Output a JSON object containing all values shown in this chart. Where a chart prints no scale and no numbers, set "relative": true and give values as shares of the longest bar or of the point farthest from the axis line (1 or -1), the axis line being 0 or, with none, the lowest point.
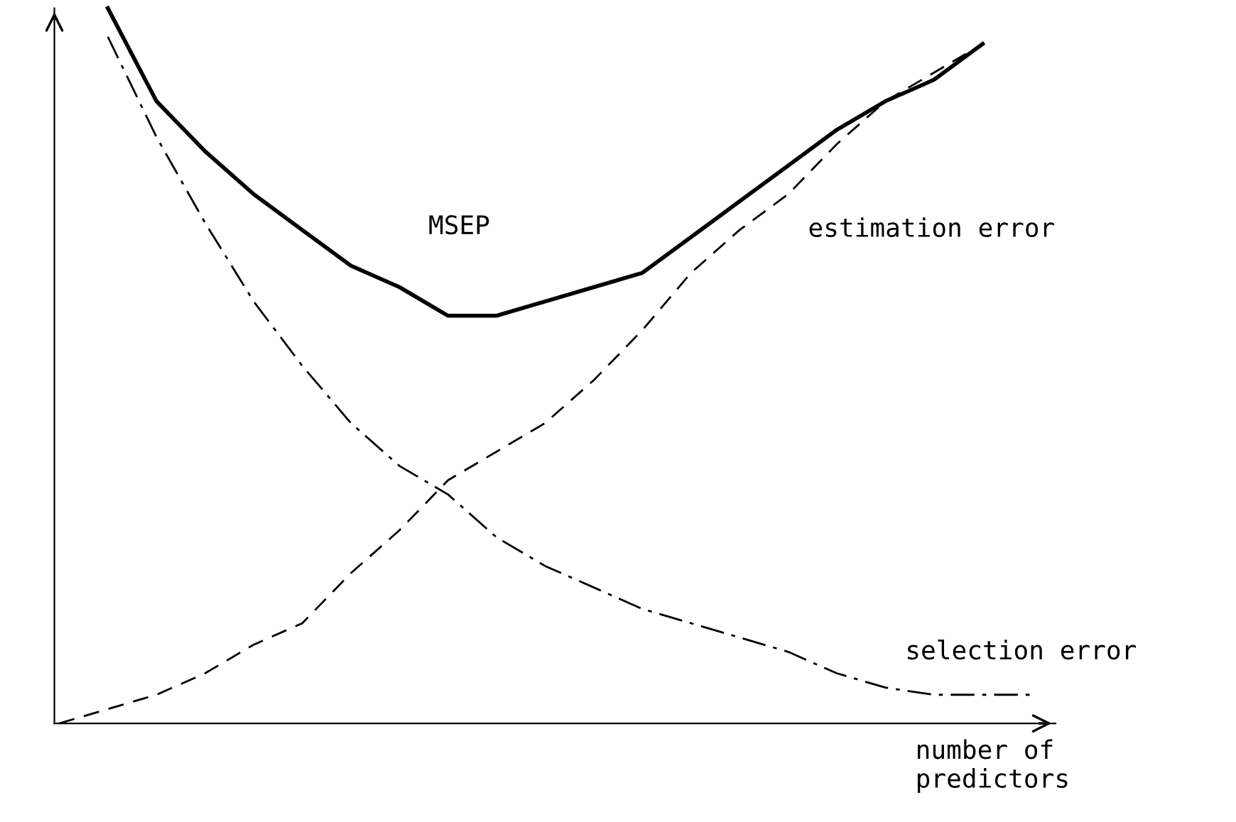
{
  "chart_data": {
    "type": "line",
    "relative": true,
    "xlabel": "number of\npredictors",
    "categories": [
      null,
      null,
      null,
      null,
      null,
      null,
      null,
      null,
      null,
      null,
      null,
      null,
      null,
      null,
      null,
      null,
      null,
      null,
      null,
      null,
      null
    ],
    "series": [
      {
        "name": "MSEP",
        "color": "#000000",
        "line_style": "solid",
        "values": [
          null,
          1.0,
          0.87,
          0.8,
          0.74,
          0.69,
          0.64,
          0.61,
          0.57,
          0.57,
          0.59,
          0.61,
          0.63,
          0.68,
          0.73,
          0.78,
          0.83,
          0.87,
          0.9,
          0.95,
          null
        ]
      },
      {
        "name": "estimation error",
        "color": "#000000",
        "line_style": "dashed",
        "values": [
          0,
          0.02,
          0.04,
          0.07,
          0.11,
          0.14,
          0.21,
          0.27,
          0.34,
          0.38,
          0.42,
          0.48,
          0.55,
          0.63,
          0.69,
          0.74,
          0.81,
          0.87,
          0.91,
          0.95,
          null
        ]
      },
      {
        "name": "selection error",
        "color": "#000000",
        "line_style": "dashdot",
        "values": [
          null,
          0.96,
          0.82,
          0.7,
          0.59,
          0.5,
          0.42,
          0.36,
          0.32,
          0.26,
          0.22,
          0.19,
          0.16,
          0.14,
          0.12,
          0.1,
          0.07,
          0.05,
          0.04,
          0.04,
          0.04
        ]
      }
    ],
    "legend": false,
    "marker": "none"
  }
}
